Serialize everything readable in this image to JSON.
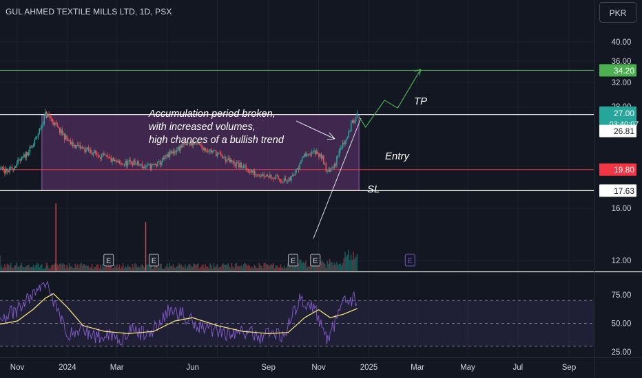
{
  "header": {
    "symbol_title": "GUL AHMED TEXTILE MILLS LTD, 1D, PSX",
    "currency": "PKR"
  },
  "colors": {
    "background": "#131722",
    "axis_text": "#d1d4dc",
    "grid": "#1e222d",
    "up": "#26a69a",
    "down": "#ef5350",
    "zone_fill": "#7b3f8c",
    "tp_line": "#4caf50",
    "sl_line": "#f23645",
    "rsi": "#7e57c2",
    "rsi_ma": "#f5e27a"
  },
  "chart_data": [
    {
      "type": "candlestick",
      "title": "GUL AHMED TEXTILE MILLS LTD, 1D, PSX",
      "x_ticks": [
        "Nov",
        "2024",
        "Mar",
        "Jun",
        "Sep",
        "Nov",
        "2025",
        "Mar",
        "May",
        "Jul",
        "Sep"
      ],
      "y_ticks": [
        "40.00",
        "36.00",
        "32.00",
        "28.00",
        "16.00",
        "12.00"
      ],
      "scale": "log",
      "ylim": [
        10.5,
        46
      ],
      "price_path": [
        [
          "2023-10-01",
          20.2
        ],
        [
          "2023-10-20",
          19.5
        ],
        [
          "2023-11-05",
          20.8
        ],
        [
          "2023-11-20",
          22.5
        ],
        [
          "2023-12-01",
          25.4
        ],
        [
          "2023-12-05",
          26.9
        ],
        [
          "2023-12-12",
          26.2
        ],
        [
          "2023-12-20",
          24.8
        ],
        [
          "2024-01-05",
          22.8
        ],
        [
          "2024-01-20",
          22.2
        ],
        [
          "2024-02-05",
          21.6
        ],
        [
          "2024-02-20",
          21.0
        ],
        [
          "2024-03-05",
          20.4
        ],
        [
          "2024-03-20",
          20.6
        ],
        [
          "2024-04-05",
          20.0
        ],
        [
          "2024-04-20",
          20.4
        ],
        [
          "2024-05-05",
          21.6
        ],
        [
          "2024-05-20",
          22.6
        ],
        [
          "2024-06-01",
          22.9
        ],
        [
          "2024-06-15",
          22.3
        ],
        [
          "2024-07-01",
          21.6
        ],
        [
          "2024-07-15",
          20.7
        ],
        [
          "2024-08-01",
          20.1
        ],
        [
          "2024-08-15",
          19.4
        ],
        [
          "2024-09-01",
          19.2
        ],
        [
          "2024-09-15",
          18.8
        ],
        [
          "2024-09-25",
          18.5
        ],
        [
          "2024-10-05",
          19.6
        ],
        [
          "2024-10-15",
          21.6
        ],
        [
          "2024-10-25",
          21.9
        ],
        [
          "2024-11-05",
          21.2
        ],
        [
          "2024-11-12",
          19.4
        ],
        [
          "2024-11-20",
          20.1
        ],
        [
          "2024-11-28",
          22.4
        ],
        [
          "2024-12-05",
          23.8
        ],
        [
          "2024-12-12",
          25.6
        ],
        [
          "2024-12-18",
          27.0
        ]
      ],
      "levels": [
        {
          "value": 34.2,
          "label": "34.20",
          "color": "#4caf50"
        },
        {
          "value": 27.0,
          "label": "27.00",
          "sub": "03:40:07",
          "color": "#26a69a"
        },
        {
          "value": 26.81,
          "label": "26.81",
          "color": "#ffffff"
        },
        {
          "value": 19.8,
          "label": "19.80",
          "color": "#f23645"
        },
        {
          "value": 17.63,
          "label": "17.63",
          "color": "#ffffff"
        }
      ],
      "accumulation_zone": {
        "x_from": "2023-12-01",
        "x_to": "2024-12-20",
        "y_low": 17.63,
        "y_high": 26.81
      },
      "projection_path": [
        [
          "2024-12-20",
          26.5
        ],
        [
          "2024-12-28",
          25.0
        ],
        [
          "2025-01-20",
          29.0
        ],
        [
          "2025-02-05",
          27.8
        ],
        [
          "2025-03-05",
          34.4
        ]
      ],
      "earnings_markers": [
        "2023-10-05",
        "2024-02-20",
        "2024-04-15",
        "2024-10-01",
        "2024-10-28",
        "2025-02-20"
      ],
      "earnings_label": "E",
      "annotations": {
        "note_line1": "Accumulation period broken,",
        "note_line2": "with increased volumes,",
        "note_line3": "high chances of a bullish trend",
        "tp": "TP",
        "entry": "Entry",
        "sl": "SL"
      }
    },
    {
      "type": "line",
      "indicator": "RSI",
      "y_ticks": [
        "75.00",
        "50.00",
        "25.00"
      ],
      "ylim": [
        23,
        90
      ],
      "bands": [
        30,
        50,
        70
      ],
      "rsi": [
        [
          "2023-10-01",
          52
        ],
        [
          "2023-10-15",
          56
        ],
        [
          "2023-11-01",
          60
        ],
        [
          "2023-11-15",
          72
        ],
        [
          "2023-12-01",
          82
        ],
        [
          "2023-12-08",
          88
        ],
        [
          "2023-12-15",
          70
        ],
        [
          "2023-12-25",
          52
        ],
        [
          "2024-01-05",
          40
        ],
        [
          "2024-01-20",
          45
        ],
        [
          "2024-02-05",
          38
        ],
        [
          "2024-02-20",
          42
        ],
        [
          "2024-03-05",
          36
        ],
        [
          "2024-03-20",
          44
        ],
        [
          "2024-04-05",
          40
        ],
        [
          "2024-04-20",
          48
        ],
        [
          "2024-05-05",
          62
        ],
        [
          "2024-05-20",
          58
        ],
        [
          "2024-06-05",
          50
        ],
        [
          "2024-06-20",
          46
        ],
        [
          "2024-07-05",
          44
        ],
        [
          "2024-07-20",
          40
        ],
        [
          "2024-08-05",
          43
        ],
        [
          "2024-08-20",
          38
        ],
        [
          "2024-09-05",
          42
        ],
        [
          "2024-09-20",
          40
        ],
        [
          "2024-10-01",
          56
        ],
        [
          "2024-10-10",
          72
        ],
        [
          "2024-10-20",
          68
        ],
        [
          "2024-11-01",
          56
        ],
        [
          "2024-11-12",
          36
        ],
        [
          "2024-11-22",
          52
        ],
        [
          "2024-12-01",
          66
        ],
        [
          "2024-12-10",
          72
        ],
        [
          "2024-12-18",
          70
        ]
      ],
      "rsi_ma": [
        [
          "2023-10-01",
          48
        ],
        [
          "2023-11-01",
          52
        ],
        [
          "2023-11-20",
          62
        ],
        [
          "2023-12-05",
          72
        ],
        [
          "2023-12-15",
          76
        ],
        [
          "2024-01-01",
          64
        ],
        [
          "2024-01-20",
          48
        ],
        [
          "2024-02-15",
          43
        ],
        [
          "2024-03-15",
          41
        ],
        [
          "2024-04-15",
          43
        ],
        [
          "2024-05-10",
          52
        ],
        [
          "2024-06-01",
          55
        ],
        [
          "2024-07-01",
          48
        ],
        [
          "2024-08-01",
          43
        ],
        [
          "2024-09-01",
          41
        ],
        [
          "2024-09-25",
          42
        ],
        [
          "2024-10-15",
          55
        ],
        [
          "2024-11-01",
          62
        ],
        [
          "2024-11-15",
          55
        ],
        [
          "2024-12-01",
          58
        ],
        [
          "2024-12-18",
          63
        ]
      ]
    }
  ]
}
